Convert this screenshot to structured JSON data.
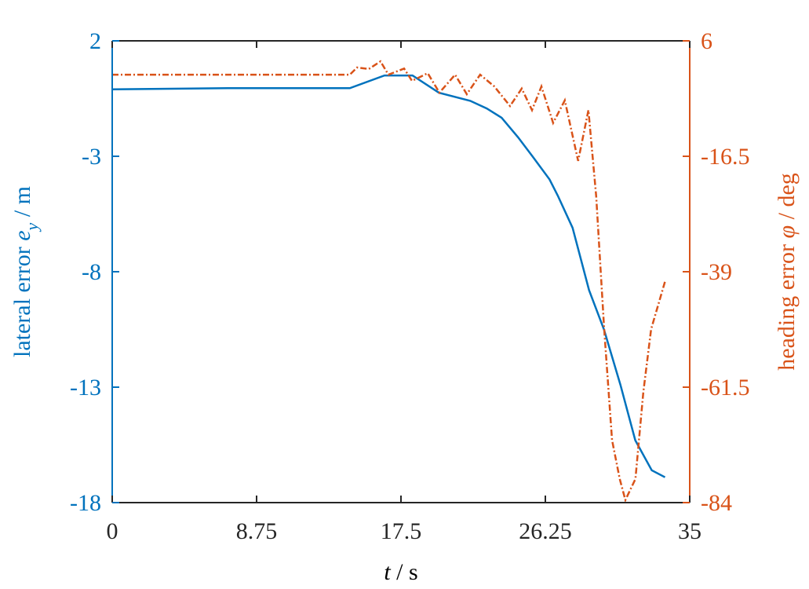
{
  "chart_data": {
    "type": "line",
    "xlabel": [
      "t",
      " / s"
    ],
    "ylabel": [
      "lateral error ",
      "e",
      "y",
      " / m"
    ],
    "y2label": [
      "heading error ",
      "φ",
      " / deg"
    ],
    "xlim": [
      0,
      35
    ],
    "xticks": [
      0,
      8.75,
      17.5,
      26.25,
      35
    ],
    "ylim": [
      -18,
      2
    ],
    "yticks": [
      2,
      -3,
      -8,
      -13,
      -18
    ],
    "y2lim": [
      -84,
      6
    ],
    "y2ticks": [
      6,
      -16.5,
      -39,
      -61.5,
      -84
    ],
    "ycolor": "#0072bd",
    "y2color": "#d95319",
    "series": [
      {
        "color": "#0072bd",
        "axis": "y",
        "dash": "none",
        "x": [
          0,
          7,
          14.4,
          16.5,
          18.2,
          19.8,
          21.7,
          22.7,
          23.6,
          24.6,
          25.5,
          26.5,
          27,
          27.9,
          28.9,
          29.8,
          30.8,
          31.7,
          32.7,
          33.5
        ],
        "values": [
          -0.1,
          -0.05,
          -0.05,
          0.5,
          0.5,
          -0.25,
          -0.6,
          -0.93,
          -1.33,
          -2.18,
          -3.03,
          -4.0,
          -4.7,
          -6.1,
          -8.8,
          -10.5,
          -12.9,
          -15.3,
          -16.6,
          -16.9
        ]
      },
      {
        "color": "#d95319",
        "axis": "y2",
        "dash": "8 3 2 3",
        "x": [
          0,
          7,
          14.4,
          14.84,
          15.55,
          16.26,
          16.74,
          17.69,
          18.17,
          19.12,
          19.83,
          20.78,
          21.49,
          22.3,
          23.16,
          24.11,
          24.82,
          25.44,
          26.01,
          26.72,
          27.43,
          28.24,
          28.86,
          29.33,
          29.81,
          30.29,
          30.76,
          31.1,
          31.71,
          32.19,
          32.66,
          33.52
        ],
        "values": [
          -0.6,
          -0.6,
          -0.6,
          0.8,
          0.5,
          2.0,
          -0.6,
          0.6,
          -1.8,
          -0.3,
          -4.1,
          -0.6,
          -4.4,
          -0.6,
          -2.9,
          -6.7,
          -3.3,
          -7.5,
          -2.9,
          -10,
          -5.6,
          -17.4,
          -7.5,
          -24.3,
          -50,
          -71.8,
          -79.4,
          -83.5,
          -79.4,
          -62.4,
          -50.2,
          -40.7
        ]
      }
    ]
  }
}
